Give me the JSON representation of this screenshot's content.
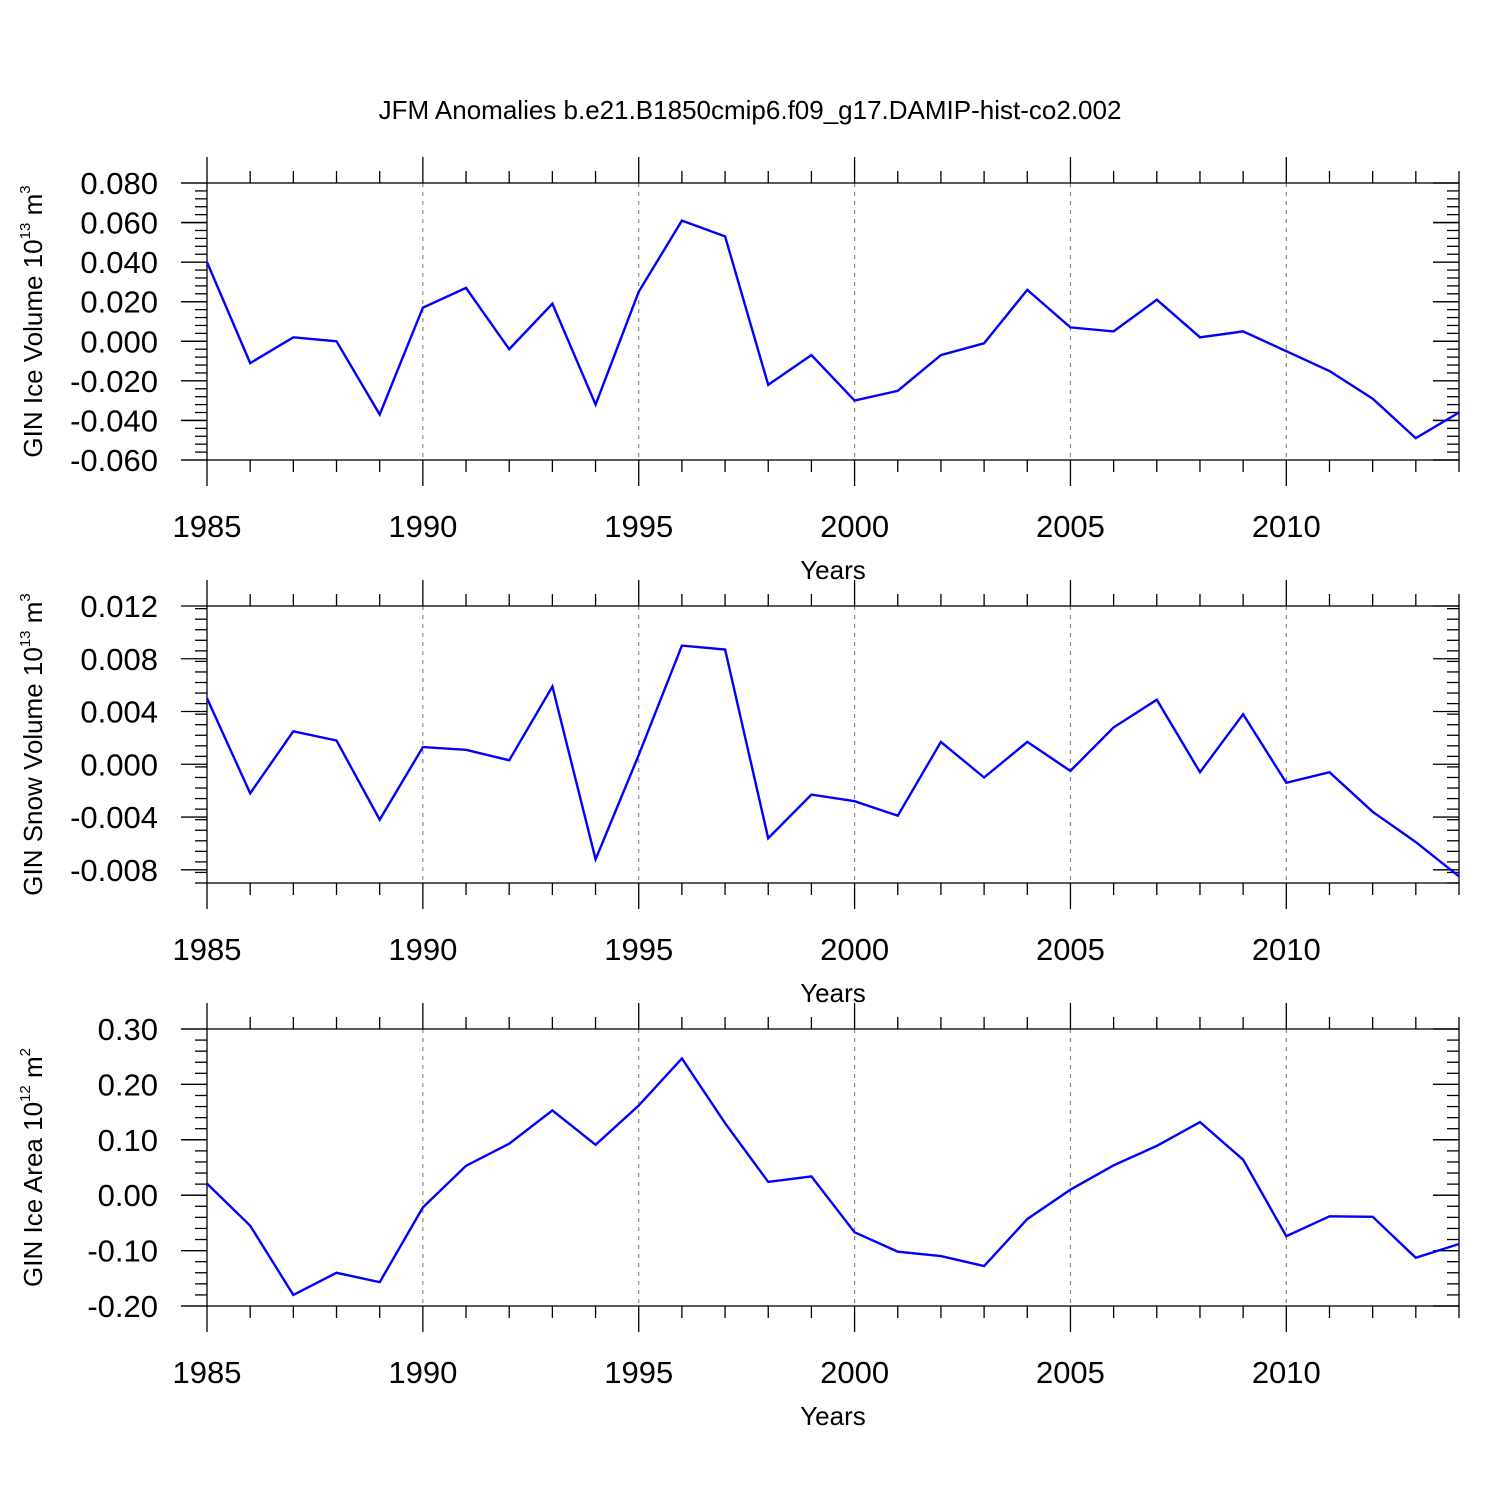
{
  "title": "JFM Anomalies b.e21.B1850cmip6.f09_g17.DAMIP-hist-co2.002",
  "colors": {
    "line": "#0000ff",
    "axis": "#000000",
    "grid": "#888888"
  },
  "chart_data": [
    {
      "type": "line",
      "ylabel": {
        "text": "GIN Ice Volume 10",
        "exp": "13",
        "unit": " m",
        "unit_exp": "3"
      },
      "xlabel": "Years",
      "xlim": [
        1985,
        2014
      ],
      "ylim": [
        -0.06,
        0.08
      ],
      "yticks": [
        -0.06,
        -0.04,
        -0.02,
        0.0,
        0.02,
        0.04,
        0.06,
        0.08
      ],
      "ytick_labels": [
        "-0.060",
        "-0.040",
        "-0.020",
        "0.000",
        "0.020",
        "0.040",
        "0.060",
        "0.080"
      ],
      "xticks": [
        1985,
        1990,
        1995,
        2000,
        2005,
        2010
      ],
      "xtick_labels": [
        "1985",
        "1990",
        "1995",
        "2000",
        "2005",
        "2010"
      ],
      "x": [
        1985,
        1986,
        1987,
        1988,
        1989,
        1990,
        1991,
        1992,
        1993,
        1994,
        1995,
        1996,
        1997,
        1998,
        1999,
        2000,
        2001,
        2002,
        2003,
        2004,
        2005,
        2006,
        2007,
        2008,
        2009,
        2010,
        2011,
        2012,
        2013,
        2014
      ],
      "values": [
        0.04,
        -0.011,
        0.002,
        0.0,
        -0.037,
        0.017,
        0.027,
        -0.004,
        0.019,
        -0.032,
        0.025,
        0.061,
        0.053,
        -0.022,
        -0.007,
        -0.03,
        -0.025,
        -0.007,
        -0.001,
        0.026,
        0.007,
        0.005,
        0.021,
        0.002,
        0.005,
        -0.005,
        -0.015,
        -0.029,
        -0.049,
        -0.036
      ],
      "grid": "vertical dashed at major x ticks"
    },
    {
      "type": "line",
      "ylabel": {
        "text": "GIN Snow Volume 10",
        "exp": "13",
        "unit": " m",
        "unit_exp": "3"
      },
      "xlabel": "Years",
      "xlim": [
        1985,
        2014
      ],
      "ylim": [
        -0.009,
        0.012
      ],
      "yticks": [
        -0.008,
        -0.004,
        0.0,
        0.004,
        0.008,
        0.012
      ],
      "ytick_labels": [
        "-0.008",
        "-0.004",
        "0.000",
        "0.004",
        "0.008",
        "0.012"
      ],
      "xticks": [
        1985,
        1990,
        1995,
        2000,
        2005,
        2010
      ],
      "xtick_labels": [
        "1985",
        "1990",
        "1995",
        "2000",
        "2005",
        "2010"
      ],
      "x": [
        1985,
        1986,
        1987,
        1988,
        1989,
        1990,
        1991,
        1992,
        1993,
        1994,
        1995,
        1996,
        1997,
        1998,
        1999,
        2000,
        2001,
        2002,
        2003,
        2004,
        2005,
        2006,
        2007,
        2008,
        2009,
        2010,
        2011,
        2012,
        2013,
        2014
      ],
      "values": [
        0.005,
        -0.0022,
        0.0025,
        0.0018,
        -0.0042,
        0.0013,
        0.0011,
        0.0003,
        0.0059,
        -0.0072,
        0.0007,
        0.009,
        0.0087,
        -0.0056,
        -0.0023,
        -0.0028,
        -0.0039,
        0.0017,
        -0.001,
        0.0017,
        -0.0005,
        0.0028,
        0.0049,
        -0.0006,
        0.0038,
        -0.0014,
        -0.0006,
        -0.0036,
        -0.0059,
        -0.0085
      ],
      "grid": "vertical dashed at major x ticks"
    },
    {
      "type": "line",
      "ylabel": {
        "text": "GIN Ice Area 10",
        "exp": "12",
        "unit": " m",
        "unit_exp": "2"
      },
      "xlabel": "Years",
      "xlim": [
        1985,
        2014
      ],
      "ylim": [
        -0.2,
        0.3
      ],
      "yticks": [
        -0.2,
        -0.1,
        0.0,
        0.1,
        0.2,
        0.3
      ],
      "ytick_labels": [
        "-0.20",
        "-0.10",
        "0.00",
        "0.10",
        "0.20",
        "0.30"
      ],
      "xticks": [
        1985,
        1990,
        1995,
        2000,
        2005,
        2010
      ],
      "xtick_labels": [
        "1985",
        "1990",
        "1995",
        "2000",
        "2005",
        "2010"
      ],
      "x": [
        1985,
        1986,
        1987,
        1988,
        1989,
        1990,
        1991,
        1992,
        1993,
        1994,
        1995,
        1996,
        1997,
        1998,
        1999,
        2000,
        2001,
        2002,
        2003,
        2004,
        2005,
        2006,
        2007,
        2008,
        2009,
        2010,
        2011,
        2012,
        2013,
        2014
      ],
      "values": [
        0.021,
        -0.055,
        -0.18,
        -0.14,
        -0.157,
        -0.022,
        0.053,
        0.093,
        0.153,
        0.091,
        0.162,
        0.247,
        0.13,
        0.024,
        0.034,
        -0.067,
        -0.102,
        -0.11,
        -0.128,
        -0.043,
        0.01,
        0.054,
        0.089,
        0.132,
        0.064,
        -0.074,
        -0.038,
        -0.039,
        -0.113,
        -0.088
      ],
      "grid": "vertical dashed at major x ticks"
    }
  ]
}
